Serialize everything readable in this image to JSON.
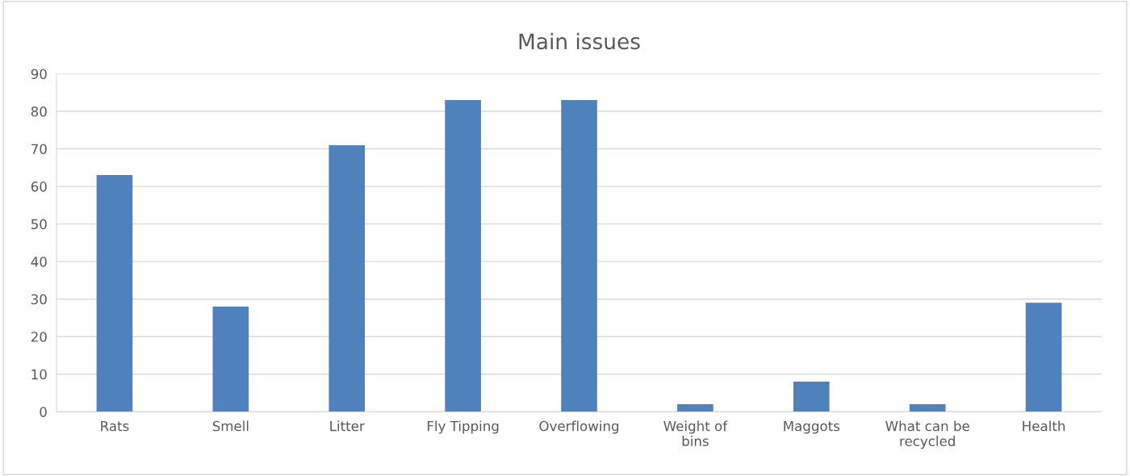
{
  "chart_data": {
    "type": "bar",
    "title": "Main issues",
    "categories": [
      "Rats",
      "Smell",
      "Litter",
      "Fly Tipping",
      "Overflowing",
      "Weight of\nbins",
      "Maggots",
      "What can be\nrecycled",
      "Health"
    ],
    "values": [
      63,
      28,
      71,
      83,
      83,
      2,
      8,
      2,
      29
    ],
    "color": "#4f81bd",
    "ylim": [
      0,
      90
    ],
    "yticks": [
      0,
      10,
      20,
      30,
      40,
      50,
      60,
      70,
      80,
      90
    ],
    "grid": "y",
    "legend": false
  }
}
